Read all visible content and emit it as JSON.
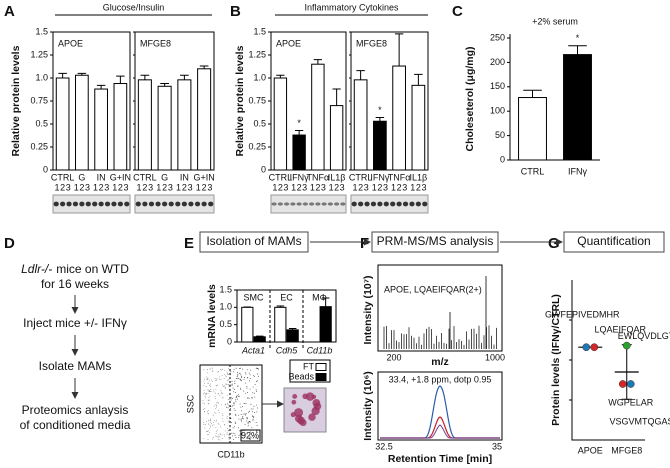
{
  "chart_data": [
    {
      "type": "bar",
      "group_title": "Glucose/Insulin",
      "ylabel": "Relative protein levels",
      "label": "APOE",
      "categories": [
        "CTRL",
        "G",
        "IN",
        "G+IN"
      ],
      "replicates": [
        1,
        2,
        3
      ],
      "values": [
        1.0,
        1.03,
        0.88,
        0.94
      ],
      "errors": [
        0.05,
        0.02,
        0.04,
        0.08
      ],
      "colors": [
        "#ffffff",
        "#ffffff",
        "#ffffff",
        "#ffffff"
      ],
      "ylim": [
        0,
        1.5
      ],
      "yticks": [
        0,
        0.25,
        0.5,
        0.75,
        {
          "value": 1,
          "label": "1.0"
        },
        1.25,
        1.5
      ]
    },
    {
      "type": "bar",
      "label": "MFGE8",
      "categories": [
        "CTRL",
        "G",
        "IN",
        "G+IN"
      ],
      "replicates": [
        1,
        2,
        3
      ],
      "values": [
        0.98,
        0.91,
        0.98,
        1.1
      ],
      "errors": [
        0.05,
        0.03,
        0.05,
        0.03
      ],
      "colors": [
        "#ffffff",
        "#ffffff",
        "#ffffff",
        "#ffffff"
      ],
      "ylim": [
        0,
        1.5
      ]
    },
    {
      "type": "bar",
      "group_title": "Inflammatory Cytokines",
      "ylabel": "Relative protein levels",
      "label": "APOE",
      "categories": [
        "CTRL",
        "IFNγ",
        "TNFα",
        "IL1β"
      ],
      "replicates": [
        1,
        2,
        3
      ],
      "values": [
        1.0,
        0.38,
        1.15,
        0.7
      ],
      "errors": [
        0.03,
        0.05,
        0.05,
        0.18
      ],
      "colors": [
        "#ffffff",
        "#000000",
        "#ffffff",
        "#ffffff"
      ],
      "marker_labels": [
        null,
        "*",
        null,
        null
      ],
      "ylim": [
        0,
        1.5
      ],
      "yticks": [
        0,
        0.25,
        0.5,
        0.75,
        {
          "value": 1,
          "label": "1.0"
        },
        1.25,
        1.5
      ]
    },
    {
      "type": "bar",
      "label": "MFGE8",
      "categories": [
        "CTRL",
        "IFNγ",
        "TNFα",
        "IL1β"
      ],
      "replicates": [
        1,
        2,
        3
      ],
      "values": [
        0.98,
        0.53,
        1.13,
        0.92
      ],
      "errors": [
        0.1,
        0.04,
        0.35,
        0.12
      ],
      "colors": [
        "#ffffff",
        "#000000",
        "#ffffff",
        "#ffffff"
      ],
      "marker_labels": [
        null,
        "*",
        null,
        null
      ],
      "ylim": [
        0,
        1.5
      ]
    },
    {
      "type": "bar",
      "subtitle": "+2% serum",
      "ylabel": "Choleseterol (μg/mg)",
      "categories": [
        "CTRL",
        "IFNγ"
      ],
      "values": [
        128,
        216
      ],
      "errors": [
        15,
        18
      ],
      "colors": [
        "#ffffff",
        "#000000"
      ],
      "marker_labels": [
        null,
        "*"
      ],
      "ylim": [
        0,
        250
      ],
      "yticks": [
        0,
        50,
        100,
        150,
        200,
        250
      ]
    },
    {
      "type": "grouped_bar",
      "ylabel": "mRNA levels",
      "groups": [
        "SMC",
        "EC",
        "MΦ"
      ],
      "categories": [
        "Acta1",
        "Cdh5",
        "Cd11b"
      ],
      "series": [
        {
          "name": "FT",
          "color": "#ffffff",
          "values": [
            1.0,
            1.0,
            null
          ],
          "errors": [
            0.01,
            0.04,
            null
          ]
        },
        {
          "name": "Beads",
          "color": "#000000",
          "values": [
            0.15,
            0.35,
            1.02
          ],
          "errors": [
            0.02,
            0.04,
            0.25
          ]
        }
      ],
      "ylim": [
        0,
        1.5
      ],
      "yticks": [
        0,
        0.5,
        {
          "value": 1,
          "label": "1.0"
        },
        1.5
      ]
    },
    {
      "type": "dot",
      "ylabel": "Protein levels (IFNγ/CTRL)",
      "categories": [
        "APOE",
        "MFGE8"
      ],
      "series": [
        {
          "name": "GWFEPIVEDMHR",
          "color": "#1f77b4",
          "values": [
            0.58,
            null
          ]
        },
        {
          "name": "LQAEIFQAR",
          "color": "#d62728",
          "values": [
            0.58,
            null
          ]
        },
        {
          "name": "EWLQVDLGTQR",
          "color": "#2ca02c",
          "values": [
            null,
            0.59
          ]
        },
        {
          "name": "WGPELAR",
          "color": "#d62728",
          "values": [
            null,
            0.35
          ]
        },
        {
          "name": "VSGVMTQGASR",
          "color": "#1f77b4",
          "values": [
            null,
            0.35
          ]
        }
      ],
      "means": [
        0.58,
        0.425
      ],
      "errors": [
        0,
        0.17
      ],
      "ylim": [
        0,
        1
      ]
    }
  ],
  "panel_labels": [
    "A",
    "B",
    "C",
    "D",
    "E",
    "F",
    "G"
  ],
  "workflow": {
    "steps": [
      {
        "gene": "Ldlr-/-",
        "lines": [
          "mice on WTD",
          "for 16 weeks"
        ]
      },
      {
        "lines": [
          "Inject mice +/- IFNγ"
        ]
      },
      {
        "lines": [
          "Isolate MAMs"
        ]
      },
      {
        "lines": [
          "Proteomics anlaysis",
          "of conditioned media"
        ]
      }
    ],
    "stages": [
      "Isolation of MAMs",
      "PRM-MS/MS analysis",
      "Quantification"
    ]
  },
  "flow_cytometry": {
    "ylabel": "SSC",
    "xlabel": "CD11b",
    "gate": "92%"
  },
  "ms": {
    "spectrum": {
      "title": "APOE, LQAEIFQAR(2+)",
      "ylabel": "Intensity (10⁷)",
      "xlabel": "m/z",
      "xticks": [
        200,
        1000
      ]
    },
    "chromatogram": {
      "title": "33.4, +1.8 ppm, dotp 0.95",
      "ylabel": "Intensity (10⁶)",
      "xlabel": "Retention Time [min]",
      "xticks": [
        32.5,
        35
      ]
    }
  }
}
